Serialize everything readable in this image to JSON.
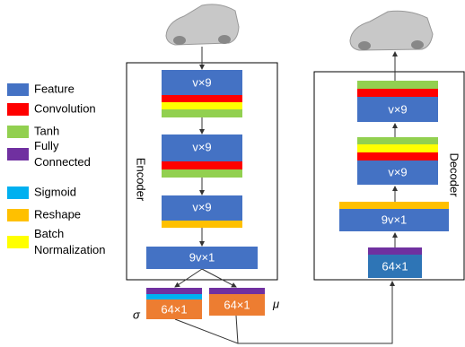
{
  "legend": [
    {
      "label": "Feature",
      "color": "#4472c4"
    },
    {
      "label": "Convolution",
      "color": "#ff0000"
    },
    {
      "label": "Tanh",
      "color": "#92d050"
    },
    {
      "label": "Fully Connected",
      "color": "#7030a0"
    },
    {
      "label": "Sigmoid",
      "color": "#00b0f0"
    },
    {
      "label": "Reshape",
      "color": "#ffc000"
    },
    {
      "label": "Batch Normalization",
      "color": "#ffff00"
    }
  ],
  "encoder": {
    "label": "Encoder",
    "blocks": [
      "v×9",
      "v×9",
      "v×9",
      "9v×1"
    ]
  },
  "outputs": {
    "sigma": {
      "symbol": "σ",
      "label": "64×1"
    },
    "mu": {
      "symbol": "μ",
      "label": "64×1"
    }
  },
  "decoder": {
    "label": "Decoder",
    "blocks": [
      "64×1",
      "9v×1",
      "v×9",
      "v×9"
    ]
  }
}
